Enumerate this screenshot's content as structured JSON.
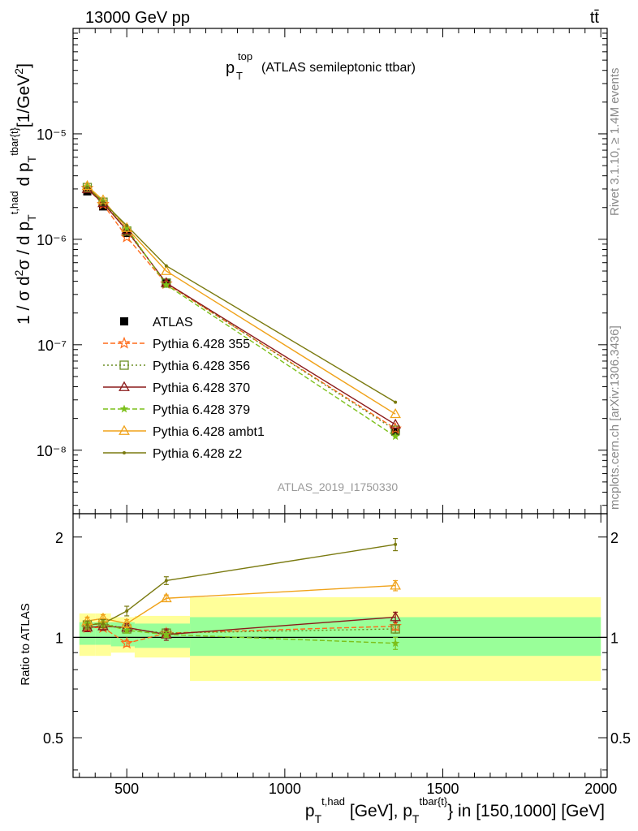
{
  "header": {
    "energy_label": "13000 GeV pp",
    "process_label": "tt̄",
    "plot_title_main": "p",
    "plot_title_sub": "T",
    "plot_title_sup": "top",
    "plot_title_rest": "(ATLAS semileptonic ttbar)",
    "watermark": "ATLAS_2019_I1750330",
    "rivet_label": "Rivet 3.1.10, ≥ 1.4M events",
    "mcplots_label": "mcplots.cern.ch [arXiv:1306.3436]"
  },
  "axes": {
    "top_ylabel": "1 / σ d²σ / d p_T^{t,had} d p_T^{tbar{t}} [1/GeV²]",
    "bottom_ylabel": "Ratio to ATLAS",
    "xlabel": "p_T^{t,had} [GeV], p_T^{tbar{t}} in [150,1000] [GeV]",
    "x_ticks": [
      "500",
      "1000",
      "1500",
      "2000"
    ],
    "top_y_ticks": [
      "10⁻⁸",
      "10⁻⁷",
      "10⁻⁶",
      "10⁻⁵"
    ],
    "ratio_y_ticks": [
      "0.5",
      "1",
      "2"
    ]
  },
  "chart_data": {
    "type": "line",
    "xlim": [
      330,
      2020
    ],
    "top_ylim": [
      2.5e-09,
      0.0001
    ],
    "ratio_ylim": [
      0.38,
      2.35
    ],
    "x": [
      375,
      425,
      500,
      625,
      1350
    ],
    "ref_band_edges": [
      350,
      400,
      450,
      525,
      700,
      2000
    ],
    "ref_band_inner": [
      [
        0.95,
        1.11
      ],
      [
        0.95,
        1.11
      ],
      [
        0.94,
        1.11
      ],
      [
        0.93,
        1.1
      ],
      [
        0.88,
        1.15
      ]
    ],
    "ref_band_outer": [
      [
        0.88,
        1.18
      ],
      [
        0.88,
        1.18
      ],
      [
        0.9,
        1.15
      ],
      [
        0.87,
        1.16
      ],
      [
        0.74,
        1.32
      ]
    ],
    "series": [
      {
        "name": "ATLAS",
        "legend": "ATLAS",
        "color": "#000000",
        "marker": "square-filled",
        "dash": "",
        "values": [
          2.85e-06,
          2.05e-06,
          1.15e-06,
          3.8e-07,
          1.5e-08
        ],
        "ratio": [
          1,
          1,
          1,
          1,
          1
        ],
        "ratio_err": [
          0,
          0,
          0,
          0,
          0
        ]
      },
      {
        "name": "355",
        "legend": "Pythia 6.428 355",
        "color": "#ff6b1a",
        "marker": "star-open",
        "dash": "6,3",
        "values": [
          3.05e-06,
          2.15e-06,
          1.05e-06,
          3.8e-07,
          1.6e-08
        ],
        "ratio": [
          1.07,
          1.07,
          0.96,
          1.03,
          1.08
        ],
        "ratio_err": [
          0.02,
          0.02,
          0.02,
          0.02,
          0.03
        ]
      },
      {
        "name": "356",
        "legend": "Pythia 6.428 356",
        "color": "#6b8e23",
        "marker": "square-open",
        "dash": "2,3",
        "values": [
          3.1e-06,
          2.25e-06,
          1.2e-06,
          3.85e-07,
          1.55e-08
        ],
        "ratio": [
          1.09,
          1.1,
          1.06,
          1.03,
          1.06
        ],
        "ratio_err": [
          0.02,
          0.02,
          0.02,
          0.02,
          0.03
        ]
      },
      {
        "name": "370",
        "legend": "Pythia 6.428 370",
        "color": "#8b1a1a",
        "marker": "triangle-open",
        "dash": "",
        "values": [
          3e-06,
          2.2e-06,
          1.22e-06,
          3.85e-07,
          1.75e-08
        ],
        "ratio": [
          1.07,
          1.08,
          1.07,
          1.02,
          1.15
        ],
        "ratio_err": [
          0.03,
          0.03,
          0.03,
          0.04,
          0.04
        ]
      },
      {
        "name": "379",
        "legend": "Pythia 6.428 379",
        "color": "#7cc01a",
        "marker": "star-filled",
        "dash": "6,3",
        "values": [
          3.15e-06,
          2.28e-06,
          1.28e-06,
          3.7e-07,
          1.35e-08
        ],
        "ratio": [
          1.1,
          1.1,
          1.05,
          1.02,
          0.96
        ],
        "ratio_err": [
          0.02,
          0.02,
          0.02,
          0.02,
          0.04
        ]
      },
      {
        "name": "ambt1",
        "legend": "Pythia 6.428 ambt1",
        "color": "#f0a21a",
        "marker": "triangle-open",
        "dash": "",
        "values": [
          3.2e-06,
          2.35e-06,
          1.28e-06,
          5e-07,
          2.2e-08
        ],
        "ratio": [
          1.12,
          1.14,
          1.1,
          1.31,
          1.43
        ],
        "ratio_err": [
          0.03,
          0.03,
          0.03,
          0.03,
          0.05
        ]
      },
      {
        "name": "z2",
        "legend": "Pythia 6.428 z2",
        "color": "#7a7a10",
        "marker": "dot",
        "dash": "",
        "values": [
          3.1e-06,
          2.25e-06,
          1.35e-06,
          5.6e-07,
          2.85e-08
        ],
        "ratio": [
          1.09,
          1.1,
          1.2,
          1.48,
          1.9
        ],
        "ratio_err": [
          0.03,
          0.03,
          0.04,
          0.04,
          0.08
        ]
      }
    ]
  }
}
